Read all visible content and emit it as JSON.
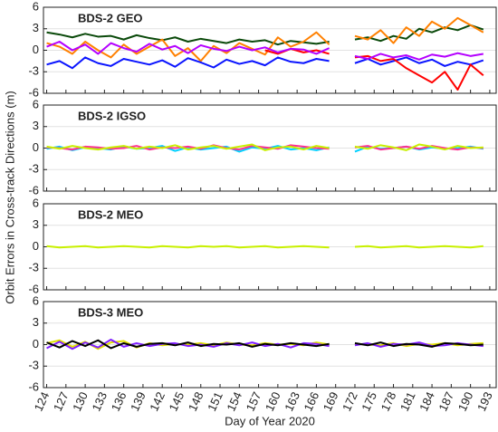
{
  "ylabel": "Orbit Errors in Cross-track Directions (m)",
  "xlabel": "Day of Year 2020",
  "chart_data": [
    {
      "type": "line",
      "title": "BDS-2 GEO",
      "x": [
        124,
        126,
        128,
        130,
        132,
        134,
        136,
        138,
        140,
        142,
        144,
        146,
        148,
        150,
        152,
        154,
        156,
        158,
        160,
        162,
        164,
        166,
        168,
        170,
        172,
        174,
        176,
        178,
        180,
        182,
        184,
        186,
        188,
        190,
        192
      ],
      "xlim": [
        123.5,
        194
      ],
      "ylim": [
        -6,
        6
      ],
      "yticks": [
        -6,
        -3,
        0,
        3,
        6
      ],
      "grid": true,
      "series": [
        {
          "color": "#0b4a0b",
          "values": [
            2.5,
            2.2,
            1.8,
            2.3,
            1.9,
            2.0,
            1.5,
            2.1,
            1.7,
            1.4,
            1.8,
            1.2,
            1.6,
            1.3,
            1.0,
            1.5,
            1.2,
            1.4,
            0.8,
            1.3,
            1.1,
            0.9,
            1.2,
            null,
            1.5,
            1.8,
            1.3,
            2.0,
            1.6,
            3.0,
            2.5,
            3.2,
            2.8,
            3.5,
            2.9
          ]
        },
        {
          "color": "#ff8000",
          "values": [
            1.0,
            0.5,
            -0.5,
            1.2,
            0.0,
            -1.0,
            0.8,
            -0.5,
            0.5,
            1.5,
            -0.8,
            0.3,
            -1.5,
            0.6,
            -0.4,
            1.0,
            0.2,
            -0.6,
            1.8,
            0.5,
            1.2,
            2.5,
            0.8,
            null,
            2.0,
            1.5,
            2.8,
            1.0,
            3.2,
            2.0,
            4.0,
            3.0,
            4.5,
            3.5,
            2.5
          ]
        },
        {
          "color": "#0a14ff",
          "values": [
            -2.0,
            -1.5,
            -2.5,
            -1.0,
            -1.8,
            -2.2,
            -1.2,
            -1.6,
            -2.0,
            -1.4,
            -2.3,
            -1.1,
            -1.7,
            -2.4,
            -1.3,
            -1.9,
            -1.5,
            -2.1,
            -1.0,
            -1.6,
            -1.8,
            -1.2,
            -1.5,
            null,
            -1.8,
            -1.2,
            -2.0,
            -1.5,
            -1.0,
            -1.8,
            -1.3,
            -2.2,
            -1.6,
            -2.0,
            -1.4
          ]
        },
        {
          "color": "#ff0000",
          "values": [
            null,
            null,
            null,
            null,
            null,
            null,
            null,
            null,
            null,
            null,
            null,
            null,
            null,
            null,
            null,
            null,
            null,
            0.0,
            -0.5,
            0.2,
            -0.3,
            0.0,
            -0.5,
            null,
            -1.0,
            -0.8,
            -1.5,
            -1.2,
            -2.5,
            -3.5,
            -4.5,
            -3.0,
            -5.5,
            -2.0,
            -3.5
          ]
        },
        {
          "color": "#b400ff",
          "values": [
            0.5,
            1.2,
            0.0,
            0.8,
            -0.5,
            1.0,
            0.3,
            -0.2,
            0.9,
            0.1,
            0.6,
            -0.4,
            0.7,
            0.2,
            -0.1,
            0.5,
            0.0,
            0.4,
            -0.3,
            0.2,
            0.1,
            -0.5,
            0.3,
            null,
            -0.8,
            -1.2,
            -0.5,
            -1.0,
            -0.7,
            -1.3,
            -0.6,
            -0.9,
            -0.4,
            -0.8,
            -0.5
          ]
        }
      ]
    },
    {
      "type": "line",
      "title": "BDS-2 IGSO",
      "x": [
        124,
        126,
        128,
        130,
        132,
        134,
        136,
        138,
        140,
        142,
        144,
        146,
        148,
        150,
        152,
        154,
        156,
        158,
        160,
        162,
        164,
        166,
        168,
        170,
        172,
        174,
        176,
        178,
        180,
        182,
        184,
        186,
        188,
        190,
        192
      ],
      "xlim": [
        123.5,
        194
      ],
      "ylim": [
        -6,
        6
      ],
      "yticks": [
        -6,
        -3,
        0,
        3,
        6
      ],
      "grid": true,
      "series": [
        {
          "color": "#00d0ff",
          "values": [
            -0.1,
            0.2,
            -0.3,
            0.1,
            0.0,
            -0.2,
            0.2,
            -0.1,
            0.0,
            0.3,
            -0.4,
            0.1,
            -0.2,
            0.0,
            0.2,
            -0.5,
            0.1,
            -0.1,
            0.3,
            -0.2,
            0.0,
            -0.3,
            0.1,
            null,
            -0.5,
            0.2,
            -0.1,
            0.0,
            0.2,
            -0.2,
            0.1,
            -0.1,
            0.0,
            0.2,
            -0.1
          ]
        },
        {
          "color": "#ff3090",
          "values": [
            0.1,
            0.0,
            -0.2,
            0.2,
            0.1,
            -0.1,
            0.0,
            0.3,
            -0.2,
            0.1,
            0.0,
            0.2,
            -0.1,
            0.4,
            0.0,
            -0.2,
            0.3,
            0.1,
            -0.1,
            0.4,
            0.2,
            0.0,
            -0.1,
            null,
            0.1,
            0.3,
            -0.2,
            0.0,
            0.2,
            -0.1,
            0.3,
            0.0,
            -0.2,
            0.1,
            0.0
          ]
        },
        {
          "color": "#c8f000",
          "values": [
            0.2,
            -0.1,
            0.3,
            0.0,
            -0.2,
            0.1,
            0.3,
            -0.1,
            0.2,
            0.0,
            0.4,
            -0.2,
            0.1,
            0.3,
            -0.1,
            0.2,
            0.5,
            -0.3,
            0.1,
            0.2,
            -0.2,
            0.3,
            0.0,
            null,
            0.2,
            -0.1,
            0.4,
            0.1,
            -0.3,
            0.5,
            0.2,
            -0.2,
            0.3,
            0.0,
            0.1
          ]
        }
      ]
    },
    {
      "type": "line",
      "title": "BDS-2 MEO",
      "x": [
        124,
        126,
        128,
        130,
        132,
        134,
        136,
        138,
        140,
        142,
        144,
        146,
        148,
        150,
        152,
        154,
        156,
        158,
        160,
        162,
        164,
        166,
        168,
        170,
        172,
        174,
        176,
        178,
        180,
        182,
        184,
        186,
        188,
        190,
        192
      ],
      "xlim": [
        123.5,
        194
      ],
      "ylim": [
        -6,
        6
      ],
      "yticks": [
        -6,
        -3,
        0,
        3,
        6
      ],
      "grid": true,
      "series": [
        {
          "color": "#c8f000",
          "values": [
            0.1,
            -0.1,
            0.0,
            0.1,
            -0.1,
            0.0,
            0.1,
            0.0,
            -0.1,
            0.1,
            0.0,
            -0.1,
            0.1,
            0.0,
            0.1,
            -0.1,
            0.0,
            0.1,
            -0.1,
            0.0,
            0.1,
            0.0,
            -0.1,
            null,
            0.0,
            0.1,
            -0.1,
            0.0,
            0.1,
            -0.1,
            0.0,
            0.1,
            0.0,
            -0.1,
            0.1
          ]
        }
      ]
    },
    {
      "type": "line",
      "title": "BDS-3 MEO",
      "x": [
        124,
        126,
        128,
        130,
        132,
        134,
        136,
        138,
        140,
        142,
        144,
        146,
        148,
        150,
        152,
        154,
        156,
        158,
        160,
        162,
        164,
        166,
        168,
        170,
        172,
        174,
        176,
        178,
        180,
        182,
        184,
        186,
        188,
        190,
        192
      ],
      "xlim": [
        123.5,
        194
      ],
      "ylim": [
        -6,
        6
      ],
      "yticks": [
        -6,
        -3,
        0,
        3,
        6
      ],
      "grid": true,
      "xticks": [
        124,
        127,
        130,
        133,
        136,
        139,
        142,
        145,
        148,
        151,
        154,
        157,
        160,
        163,
        166,
        169,
        172,
        175,
        178,
        181,
        184,
        187,
        190,
        193
      ],
      "series": [
        {
          "color": "#e0e000",
          "values": [
            0.2,
            0.6,
            -0.3,
            0.4,
            -0.6,
            0.3,
            0.5,
            -0.4,
            0.2,
            -0.1,
            0.1,
            0.0,
            0.2,
            -0.1,
            0.3,
            0.0,
            -0.1,
            0.2,
            0.0,
            0.1,
            -0.1,
            0.3,
            0.0,
            null,
            0.1,
            0.0,
            -0.1,
            0.2,
            -0.2,
            0.1,
            0.0,
            0.2,
            -0.1,
            0.1,
            0.2
          ]
        },
        {
          "color": "#8020ff",
          "values": [
            -0.5,
            0.4,
            -0.6,
            0.3,
            -0.4,
            0.7,
            -0.3,
            0.2,
            -0.2,
            0.1,
            0.2,
            -0.2,
            0.0,
            -0.3,
            0.2,
            -0.1,
            0.3,
            -0.2,
            0.1,
            -0.4,
            0.2,
            0.1,
            -0.2,
            null,
            -0.1,
            0.2,
            -0.3,
            0.1,
            0.0,
            0.3,
            -0.2,
            -0.1,
            0.2,
            0.0,
            -0.2
          ]
        },
        {
          "color": "#000000",
          "values": [
            0.3,
            -0.4,
            0.5,
            -0.2,
            0.6,
            -0.5,
            0.2,
            -0.3,
            0.1,
            0.2,
            -0.1,
            0.3,
            -0.2,
            0.1,
            0.0,
            0.2,
            -0.3,
            0.1,
            -0.1,
            0.2,
            0.0,
            -0.2,
            0.1,
            null,
            0.2,
            -0.1,
            0.3,
            -0.2,
            0.1,
            0.0,
            -0.3,
            0.2,
            0.1,
            -0.1,
            0.0
          ]
        }
      ]
    }
  ]
}
